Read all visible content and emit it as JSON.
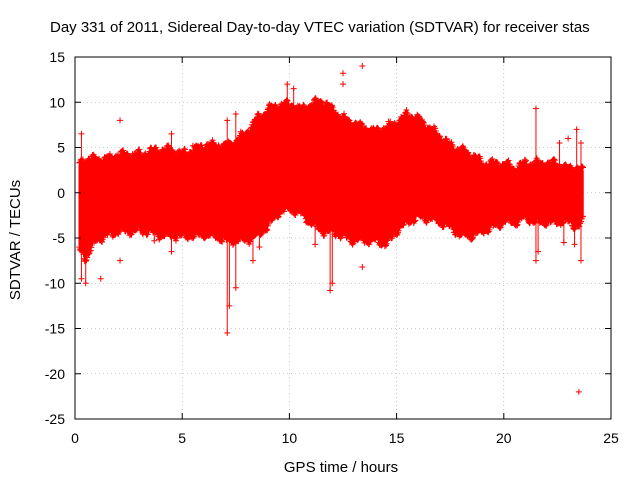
{
  "chart_data": {
    "type": "scatter",
    "title": "Day 331 of 2011, Sidereal Day-to-day VTEC variation (SDTVAR) for receiver stas",
    "xlabel": "GPS time / hours",
    "ylabel": "SDTVAR / TECUs",
    "xlim": [
      0,
      25
    ],
    "ylim": [
      -25,
      15
    ],
    "xticks": [
      0,
      5,
      10,
      15,
      20,
      25
    ],
    "xtick_labels": [
      "0",
      "5",
      "10",
      "15",
      "20",
      "25"
    ],
    "yticks": [
      -25,
      -20,
      -15,
      -10,
      -5,
      0,
      5,
      10,
      15
    ],
    "ytick_labels": [
      "-25",
      "-20",
      "-15",
      "-10",
      "-5",
      "0",
      "5",
      "10",
      "15"
    ],
    "grid": true,
    "marker": "+",
    "color": "#ff0000",
    "series": [
      {
        "name": "SDTVAR",
        "envelope": {
          "x": [
            0.2,
            0.5,
            1.0,
            1.5,
            2.0,
            2.5,
            3.0,
            3.5,
            4.0,
            4.5,
            5.0,
            5.5,
            6.0,
            6.5,
            7.0,
            7.5,
            8.0,
            8.5,
            9.0,
            9.5,
            10.0,
            10.5,
            11.0,
            11.5,
            12.0,
            12.5,
            13.0,
            13.5,
            14.0,
            14.5,
            15.0,
            15.5,
            16.0,
            16.5,
            17.0,
            17.5,
            18.0,
            18.5,
            19.0,
            19.5,
            20.0,
            20.5,
            21.0,
            21.5,
            22.0,
            22.5,
            23.0,
            23.5,
            23.7
          ],
          "upper": [
            3.0,
            3.5,
            3.5,
            3.5,
            4.0,
            4.0,
            4.0,
            4.3,
            4.5,
            4.5,
            4.0,
            4.5,
            5.0,
            5.0,
            5.0,
            5.5,
            6.5,
            8.0,
            9.0,
            9.5,
            9.5,
            9.0,
            9.5,
            10.0,
            9.0,
            8.0,
            7.5,
            7.0,
            6.5,
            7.0,
            7.5,
            8.5,
            8.0,
            7.0,
            6.0,
            5.0,
            4.5,
            4.0,
            3.0,
            3.0,
            3.0,
            2.5,
            3.0,
            3.0,
            3.0,
            3.0,
            2.5,
            2.5,
            2.0
          ],
          "lower": [
            -6.0,
            -7.0,
            -5.0,
            -4.5,
            -4.0,
            -4.0,
            -4.0,
            -4.0,
            -4.5,
            -4.5,
            -4.5,
            -4.5,
            -4.5,
            -4.5,
            -5.0,
            -5.0,
            -5.0,
            -4.5,
            -3.5,
            -2.0,
            -1.5,
            -2.0,
            -3.0,
            -4.0,
            -4.0,
            -4.5,
            -5.0,
            -5.0,
            -5.0,
            -5.5,
            -4.0,
            -3.0,
            -2.5,
            -2.5,
            -3.0,
            -3.5,
            -4.5,
            -4.5,
            -4.0,
            -3.5,
            -3.0,
            -3.0,
            -2.5,
            -3.0,
            -3.0,
            -3.0,
            -3.0,
            -3.5,
            -3.0
          ]
        },
        "spikes": [
          {
            "x": 0.3,
            "y": 6.5
          },
          {
            "x": 0.3,
            "y": -9.5
          },
          {
            "x": 0.5,
            "y": -10.0
          },
          {
            "x": 1.2,
            "y": -9.5
          },
          {
            "x": 2.1,
            "y": 8.0
          },
          {
            "x": 2.1,
            "y": -7.5
          },
          {
            "x": 3.7,
            "y": -5.3
          },
          {
            "x": 4.5,
            "y": 6.5
          },
          {
            "x": 4.5,
            "y": -6.5
          },
          {
            "x": 5.5,
            "y": 5.2
          },
          {
            "x": 7.1,
            "y": 8.0
          },
          {
            "x": 7.1,
            "y": -15.5
          },
          {
            "x": 7.2,
            "y": -12.5
          },
          {
            "x": 7.5,
            "y": 8.7
          },
          {
            "x": 7.5,
            "y": -10.5
          },
          {
            "x": 8.3,
            "y": -7.5
          },
          {
            "x": 8.6,
            "y": -6.0
          },
          {
            "x": 9.9,
            "y": 12.0
          },
          {
            "x": 10.2,
            "y": 11.5
          },
          {
            "x": 11.2,
            "y": -5.7
          },
          {
            "x": 11.9,
            "y": -10.8
          },
          {
            "x": 12.0,
            "y": -10.0
          },
          {
            "x": 12.5,
            "y": 13.2
          },
          {
            "x": 12.5,
            "y": 12.0
          },
          {
            "x": 13.4,
            "y": 14.0
          },
          {
            "x": 13.4,
            "y": -8.2
          },
          {
            "x": 21.5,
            "y": 9.3
          },
          {
            "x": 21.5,
            "y": -7.5
          },
          {
            "x": 21.6,
            "y": -6.5
          },
          {
            "x": 22.6,
            "y": 5.5
          },
          {
            "x": 22.8,
            "y": -5.5
          },
          {
            "x": 23.0,
            "y": 6.0
          },
          {
            "x": 23.3,
            "y": -5.7
          },
          {
            "x": 23.4,
            "y": 7.0
          },
          {
            "x": 23.6,
            "y": 5.5
          },
          {
            "x": 23.6,
            "y": -7.5
          },
          {
            "x": 23.5,
            "y": -22.0
          }
        ]
      }
    ]
  }
}
